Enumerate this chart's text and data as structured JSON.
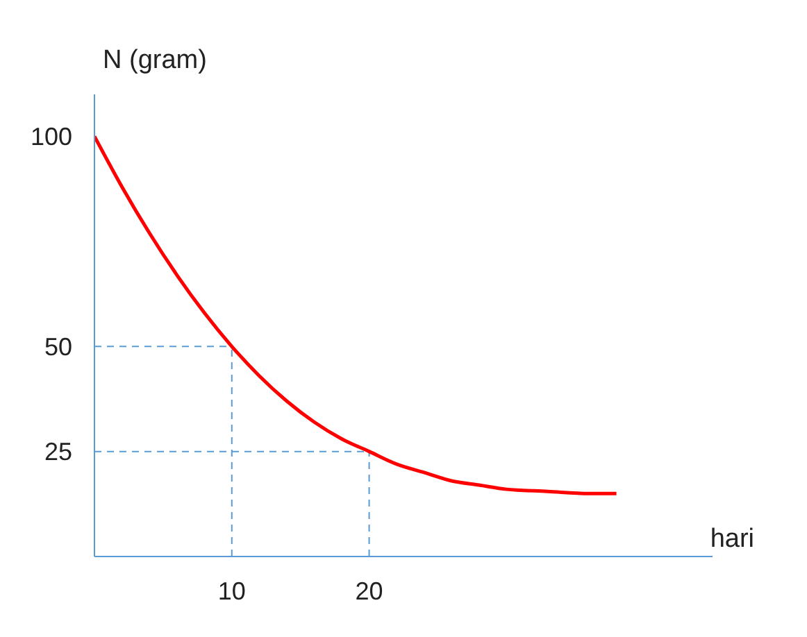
{
  "chart_data": {
    "type": "line",
    "ylabel": "N (gram)",
    "xlabel": "hari",
    "x": [
      0,
      2,
      4,
      6,
      8,
      10,
      12,
      14,
      16,
      18,
      20,
      22,
      24,
      26,
      28,
      30,
      33,
      36,
      38
    ],
    "series": [
      {
        "color": "#ff0000",
        "values": [
          100,
          88,
          77,
          67,
          58,
          50,
          43,
          37,
          32,
          28,
          25,
          22,
          20,
          18,
          17,
          16,
          15.5,
          15,
          15
        ]
      }
    ],
    "xlim": [
      0,
      45
    ],
    "ylim": [
      0,
      110
    ],
    "xticks": [
      10,
      20
    ],
    "yticks": [
      25,
      50,
      100
    ],
    "ref_lines": [
      {
        "axis": "y",
        "value": 50,
        "line_style": "dashed",
        "color": "#5b9bd5"
      },
      {
        "axis": "x",
        "value": 10,
        "line_style": "dashed",
        "color": "#5b9bd5"
      },
      {
        "axis": "y",
        "value": 25,
        "line_style": "dashed",
        "color": "#5b9bd5"
      },
      {
        "axis": "x",
        "value": 20,
        "line_style": "dashed",
        "color": "#5b9bd5"
      }
    ],
    "grid": false,
    "legend": false,
    "marker": "none",
    "line_style": "solid"
  }
}
